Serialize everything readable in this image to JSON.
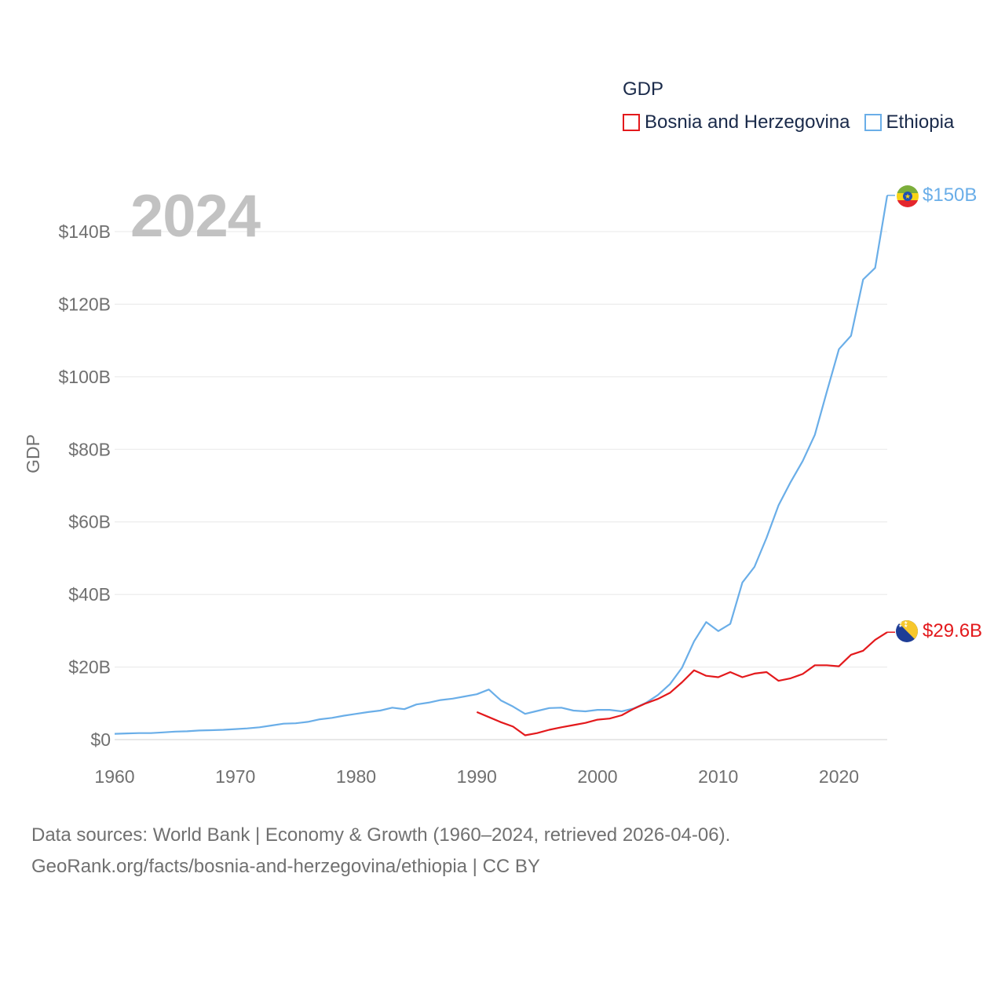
{
  "legend": {
    "title": "GDP",
    "items": [
      {
        "label": "Bosnia and Herzegovina",
        "color": "#e3191c"
      },
      {
        "label": "Ethiopia",
        "color": "#6aaee8"
      }
    ]
  },
  "year_label": "2024",
  "end_labels": {
    "ethiopia": {
      "text": "$150B",
      "color": "#6aaee8",
      "flag_icon": "ethiopia-flag-icon"
    },
    "bosnia": {
      "text": "$29.6B",
      "color": "#e3191c",
      "flag_icon": "bosnia-flag-icon"
    }
  },
  "footer": {
    "line1": "Data sources: World Bank | Economy & Growth (1960–2024, retrieved 2026-04-06).",
    "line2": "GeoRank.org/facts/bosnia-and-herzegovina/ethiopia | CC BY"
  },
  "chart_data": {
    "type": "line",
    "title": "GDP",
    "xlabel": "",
    "ylabel": "GDP",
    "xlim": [
      1960,
      2024
    ],
    "ylim": [
      0,
      150
    ],
    "x_ticks": [
      1960,
      1970,
      1980,
      1990,
      2000,
      2010,
      2020
    ],
    "x_tick_labels": [
      "1960",
      "1970",
      "1980",
      "1990",
      "2000",
      "2010",
      "2020"
    ],
    "y_ticks": [
      0,
      20,
      40,
      60,
      80,
      100,
      120,
      140
    ],
    "y_tick_labels": [
      "$0",
      "$20B",
      "$40B",
      "$60B",
      "$80B",
      "$100B",
      "$120B",
      "$140B"
    ],
    "grid": true,
    "legend_position": "top-right",
    "series": [
      {
        "name": "Ethiopia",
        "color": "#6aaee8",
        "x": [
          1960,
          1961,
          1962,
          1963,
          1964,
          1965,
          1966,
          1967,
          1968,
          1969,
          1970,
          1971,
          1972,
          1973,
          1974,
          1975,
          1976,
          1977,
          1978,
          1979,
          1980,
          1981,
          1982,
          1983,
          1984,
          1985,
          1986,
          1987,
          1988,
          1989,
          1990,
          1991,
          1992,
          1993,
          1994,
          1995,
          1996,
          1997,
          1998,
          1999,
          2000,
          2001,
          2002,
          2003,
          2004,
          2005,
          2006,
          2007,
          2008,
          2009,
          2010,
          2011,
          2012,
          2013,
          2014,
          2015,
          2016,
          2017,
          2018,
          2019,
          2020,
          2021,
          2022,
          2023,
          2024
        ],
        "values": [
          1.6,
          1.7,
          1.8,
          1.8,
          2.0,
          2.2,
          2.3,
          2.5,
          2.6,
          2.7,
          2.9,
          3.1,
          3.4,
          3.9,
          4.4,
          4.5,
          4.9,
          5.6,
          6.0,
          6.6,
          7.1,
          7.6,
          8.0,
          8.8,
          8.4,
          9.7,
          10.2,
          10.9,
          11.3,
          11.9,
          12.5,
          13.8,
          10.8,
          9.1,
          7.1,
          7.9,
          8.7,
          8.8,
          8.0,
          7.8,
          8.2,
          8.2,
          7.8,
          8.6,
          10.1,
          12.3,
          15.3,
          19.8,
          27.1,
          32.4,
          29.9,
          31.9,
          43.3,
          47.6,
          55.6,
          64.6,
          71.0,
          76.8,
          84.0,
          95.9,
          107.6,
          111.3,
          126.8,
          130.0,
          150.0
        ]
      },
      {
        "name": "Bosnia and Herzegovina",
        "color": "#e3191c",
        "x": [
          1990,
          1991,
          1992,
          1993,
          1994,
          1995,
          1996,
          1997,
          1998,
          1999,
          2000,
          2001,
          2002,
          2003,
          2004,
          2005,
          2006,
          2007,
          2008,
          2009,
          2010,
          2011,
          2012,
          2013,
          2014,
          2015,
          2016,
          2017,
          2018,
          2019,
          2020,
          2021,
          2022,
          2023,
          2024
        ],
        "values": [
          7.6,
          6.2,
          4.8,
          3.6,
          1.2,
          1.8,
          2.7,
          3.4,
          4.0,
          4.6,
          5.5,
          5.8,
          6.7,
          8.5,
          10.0,
          11.2,
          12.9,
          15.8,
          19.1,
          17.6,
          17.2,
          18.6,
          17.2,
          18.2,
          18.6,
          16.2,
          16.9,
          18.1,
          20.5,
          20.5,
          20.2,
          23.4,
          24.5,
          27.5,
          29.6
        ]
      }
    ]
  }
}
